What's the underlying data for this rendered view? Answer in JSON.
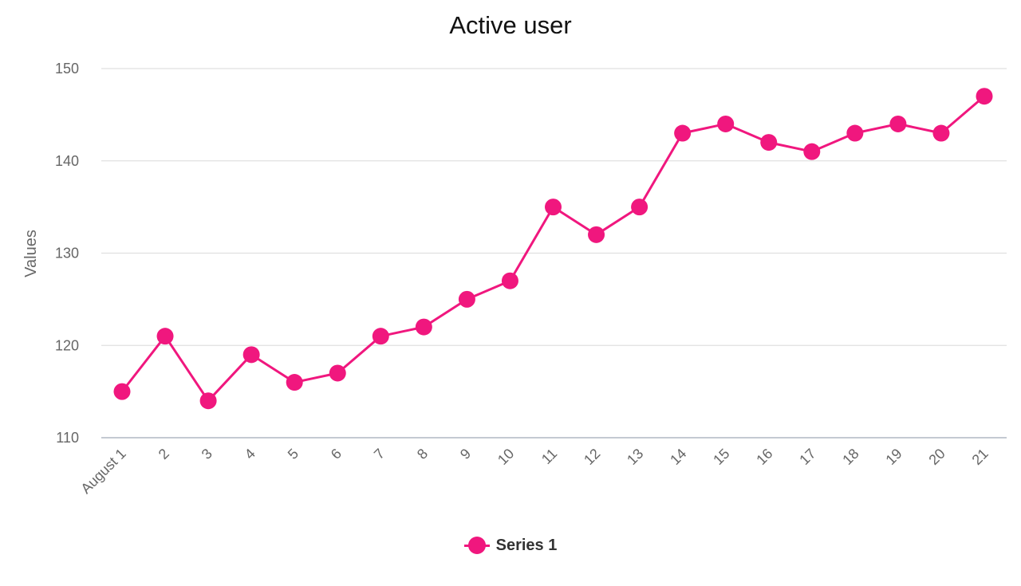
{
  "chart_data": {
    "type": "line",
    "title": "Active user",
    "xlabel": "",
    "ylabel": "Values",
    "categories": [
      "August 1",
      "2",
      "3",
      "4",
      "5",
      "6",
      "7",
      "8",
      "9",
      "10",
      "11",
      "12",
      "13",
      "14",
      "15",
      "16",
      "17",
      "18",
      "19",
      "20",
      "21"
    ],
    "series": [
      {
        "name": "Series 1",
        "values": [
          115,
          121,
          114,
          119,
          116,
          117,
          121,
          122,
          125,
          127,
          135,
          132,
          135,
          143,
          144,
          142,
          141,
          143,
          144,
          143,
          147
        ]
      }
    ],
    "ylim": [
      110,
      150
    ],
    "yticks": [
      110,
      120,
      130,
      140,
      150
    ],
    "grid": true,
    "legend": "bottom-center",
    "colors": {
      "series": "#f0177e",
      "grid": "#e0e0e0",
      "axis": "#b0b8c4"
    }
  }
}
